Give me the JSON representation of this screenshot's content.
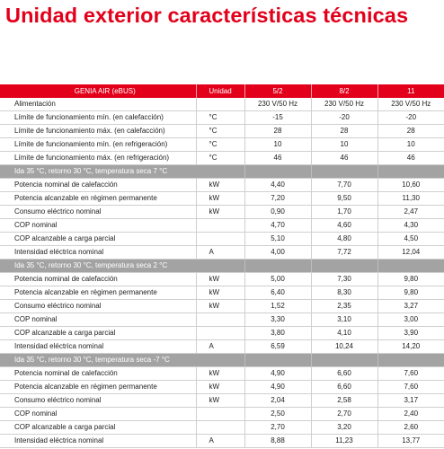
{
  "page": {
    "title": "Unidad exterior características técnicas"
  },
  "table": {
    "header": [
      "GENIA AIR (eBUS)",
      "Unidad",
      "5/2",
      "8/2",
      "11"
    ],
    "general_rows": [
      {
        "label": "Alimentación",
        "unit": "",
        "values": [
          "230 V/50 Hz",
          "230 V/50 Hz",
          "230 V/50 Hz"
        ]
      },
      {
        "label": "Límite de funcionamiento mín. (en calefacción)",
        "unit": "°C",
        "values": [
          "-15",
          "-20",
          "-20"
        ]
      },
      {
        "label": "Límite de funcionamiento máx. (en calefacción)",
        "unit": "°C",
        "values": [
          "28",
          "28",
          "28"
        ]
      },
      {
        "label": "Límite de funcionamiento mín. (en refrigeración)",
        "unit": "°C",
        "values": [
          "10",
          "10",
          "10"
        ]
      },
      {
        "label": "Límite de funcionamiento máx. (en refrigeración)",
        "unit": "°C",
        "values": [
          "46",
          "46",
          "46"
        ]
      }
    ],
    "sections": [
      {
        "title": "Ida 35 °C, retorno 30 °C, temperatura seca 7 °C",
        "rows": [
          {
            "label": "Potencia nominal de calefacción",
            "unit": "kW",
            "values": [
              "4,40",
              "7,70",
              "10,60"
            ]
          },
          {
            "label": "Potencia alcanzable en régimen permanente",
            "unit": "kW",
            "values": [
              "7,20",
              "9,50",
              "11,30"
            ]
          },
          {
            "label": "Consumo eléctrico nominal",
            "unit": "kW",
            "values": [
              "0,90",
              "1,70",
              "2,47"
            ]
          },
          {
            "label": "COP nominal",
            "unit": "",
            "values": [
              "4,70",
              "4,60",
              "4,30"
            ]
          },
          {
            "label": "COP alcanzable a carga parcial",
            "unit": "",
            "values": [
              "5,10",
              "4,80",
              "4,50"
            ]
          },
          {
            "label": "Intensidad eléctrica nominal",
            "unit": "A",
            "values": [
              "4,00",
              "7,72",
              "12,04"
            ]
          }
        ]
      },
      {
        "title": "Ida 35 °C, retorno 30 °C, temperatura seca 2 °C",
        "rows": [
          {
            "label": "Potencia nominal de calefacción",
            "unit": "kW",
            "values": [
              "5,00",
              "7,30",
              "9,80"
            ]
          },
          {
            "label": "Potencia alcanzable en régimen permanente",
            "unit": "kW",
            "values": [
              "6,40",
              "8,30",
              "9,80"
            ]
          },
          {
            "label": "Consumo eléctrico nominal",
            "unit": "kW",
            "values": [
              "1,52",
              "2,35",
              "3,27"
            ]
          },
          {
            "label": "COP nominal",
            "unit": "",
            "values": [
              "3,30",
              "3,10",
              "3,00"
            ]
          },
          {
            "label": "COP alcanzable a carga parcial",
            "unit": "",
            "values": [
              "3,80",
              "4,10",
              "3,90"
            ]
          },
          {
            "label": "Intensidad eléctrica nominal",
            "unit": "A",
            "values": [
              "6,59",
              "10,24",
              "14,20"
            ]
          }
        ]
      },
      {
        "title": "Ida 35 °C, retorno 30 °C, temperatura seca -7 °C",
        "rows": [
          {
            "label": "Potencia nominal de calefacción",
            "unit": "kW",
            "values": [
              "4,90",
              "6,60",
              "7,60"
            ]
          },
          {
            "label": "Potencia alcanzable en régimen permanente",
            "unit": "kW",
            "values": [
              "4,90",
              "6,60",
              "7,60"
            ]
          },
          {
            "label": "Consumo eléctrico nominal",
            "unit": "kW",
            "values": [
              "2,04",
              "2,58",
              "3,17"
            ]
          },
          {
            "label": "COP nominal",
            "unit": "",
            "values": [
              "2,50",
              "2,70",
              "2,40"
            ]
          },
          {
            "label": "COP alcanzable a carga parcial",
            "unit": "",
            "values": [
              "2,70",
              "3,20",
              "2,60"
            ]
          },
          {
            "label": "Intensidad eléctrica nominal",
            "unit": "A",
            "values": [
              "8,88",
              "11,23",
              "13,77"
            ]
          }
        ]
      }
    ]
  },
  "colors": {
    "brand_red": "#e2001a",
    "section_gray": "#a3a3a3"
  }
}
